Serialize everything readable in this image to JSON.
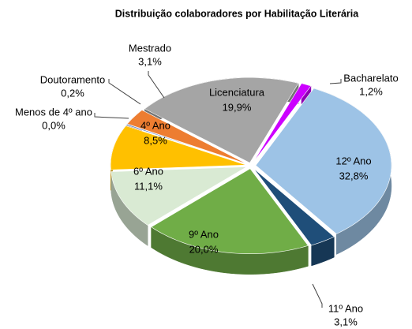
{
  "chart_data": {
    "type": "pie",
    "title": "Distribuição colaboradores por Habilitação Literária",
    "categories": [
      "Bacharelato",
      "12º Ano",
      "11º Ano",
      "9º Ano",
      "6º Ano",
      "4º Ano",
      "Menos de 4º ano",
      "Doutoramento",
      "Mestrado",
      "Licenciatura"
    ],
    "values": [
      1.2,
      32.8,
      3.1,
      20.0,
      11.1,
      8.5,
      0.0,
      0.2,
      3.1,
      19.9
    ],
    "value_labels": [
      "1,2%",
      "32,8%",
      "3,1%",
      "20,0%",
      "11,1%",
      "8,5%",
      "0,0%",
      "0,2%",
      "3,1%",
      "19,9%"
    ],
    "colors": [
      "#cc00ff",
      "#9dc3e6",
      "#1f4e79",
      "#70ad47",
      "#d9ead3",
      "#ffc000",
      "#c00000",
      "#4472c4",
      "#ed7d31",
      "#a5a5a5"
    ]
  }
}
